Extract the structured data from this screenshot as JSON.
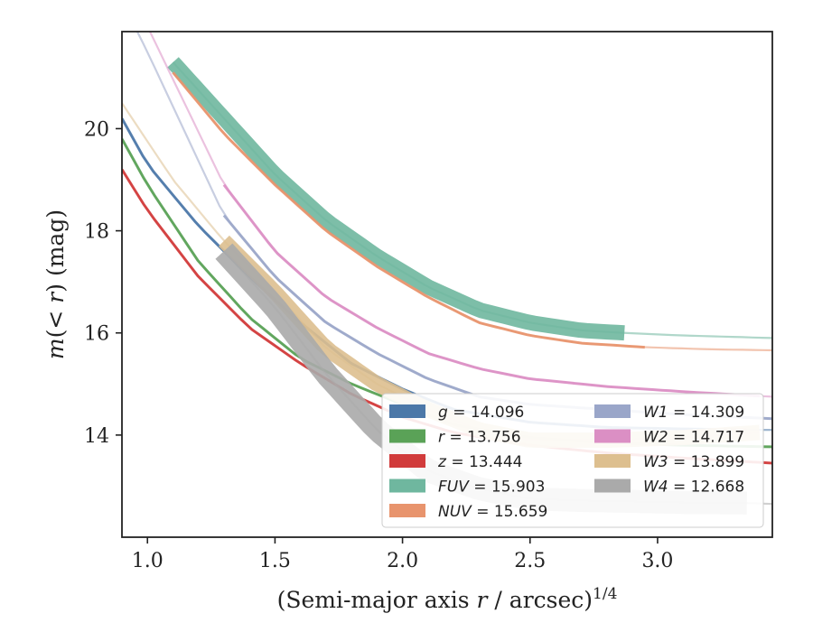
{
  "chart_data": {
    "type": "line",
    "xlabel": "(Semi-major axis r / arcsec)^1/4",
    "ylabel": "m(< r) (mag)",
    "xlim": [
      0.9,
      3.45
    ],
    "ylim": [
      21.9,
      12.0
    ],
    "y_inverted": true,
    "xticks": [
      "1.0",
      "1.5",
      "2.0",
      "2.5",
      "3.0"
    ],
    "yticks": [
      "14",
      "16",
      "18",
      "20"
    ],
    "grid": false,
    "legend_position": "lower-right",
    "legend": [
      {
        "band": "g",
        "value": "14.096",
        "color": "#4c78a8"
      },
      {
        "band": "r",
        "value": "13.756",
        "color": "#5aa257"
      },
      {
        "band": "z",
        "value": "13.444",
        "color": "#d13b3b"
      },
      {
        "band": "FUV",
        "value": "15.903",
        "color": "#6fb79f"
      },
      {
        "band": "NUV",
        "value": "15.659",
        "color": "#e8946d"
      },
      {
        "band": "W1",
        "value": "14.309",
        "color": "#9aa6c9"
      },
      {
        "band": "W2",
        "value": "14.717",
        "color": "#db8fc4"
      },
      {
        "band": "W3",
        "value": "13.899",
        "color": "#ddbf8f"
      },
      {
        "band": "W4",
        "value": "12.668",
        "color": "#aaaaaa"
      }
    ],
    "series": [
      {
        "name": "g",
        "color": "#4c78a8",
        "x": [
          0.9,
          1.0,
          1.2,
          1.4,
          1.6,
          1.8,
          2.0,
          2.2,
          2.5,
          2.8,
          3.1,
          3.45
        ],
        "y": [
          20.2,
          19.3,
          18.1,
          17.1,
          16.2,
          15.4,
          14.9,
          14.5,
          14.25,
          14.15,
          14.12,
          14.1
        ],
        "strong_range": [
          0.9,
          3.35
        ]
      },
      {
        "name": "r",
        "color": "#5aa257",
        "x": [
          0.9,
          1.0,
          1.2,
          1.4,
          1.6,
          1.8,
          2.0,
          2.2,
          2.5,
          2.8,
          3.1,
          3.45
        ],
        "y": [
          19.8,
          18.9,
          17.4,
          16.3,
          15.5,
          15.0,
          14.6,
          14.2,
          13.95,
          13.85,
          13.8,
          13.77
        ],
        "strong_range": [
          0.9,
          3.45
        ]
      },
      {
        "name": "z",
        "color": "#d13b3b",
        "x": [
          0.9,
          1.0,
          1.2,
          1.4,
          1.6,
          1.8,
          2.0,
          2.2,
          2.5,
          2.8,
          3.1,
          3.45
        ],
        "y": [
          19.2,
          18.4,
          17.1,
          16.1,
          15.4,
          14.8,
          14.35,
          14.05,
          13.8,
          13.65,
          13.55,
          13.45
        ],
        "strong_range": [
          0.9,
          3.45
        ]
      },
      {
        "name": "FUV",
        "color": "#6fb79f",
        "x": [
          1.1,
          1.3,
          1.5,
          1.7,
          1.9,
          2.1,
          2.3,
          2.5,
          2.7,
          2.87,
          3.1,
          3.45
        ],
        "y": [
          21.3,
          20.2,
          19.1,
          18.2,
          17.5,
          16.9,
          16.45,
          16.2,
          16.05,
          16.0,
          15.95,
          15.9
        ],
        "strong_range": [
          1.1,
          2.87
        ],
        "band_width": 0.3
      },
      {
        "name": "NUV",
        "color": "#e8946d",
        "x": [
          1.1,
          1.3,
          1.5,
          1.7,
          1.9,
          2.1,
          2.3,
          2.5,
          2.7,
          2.95,
          3.2,
          3.45
        ],
        "y": [
          21.1,
          19.9,
          18.9,
          18.0,
          17.3,
          16.7,
          16.2,
          15.95,
          15.8,
          15.72,
          15.68,
          15.66
        ],
        "strong_range": [
          1.1,
          2.95
        ]
      },
      {
        "name": "W1",
        "color": "#9aa6c9",
        "x": [
          0.9,
          1.0,
          1.3,
          1.5,
          1.7,
          1.9,
          2.1,
          2.3,
          2.5,
          2.8,
          3.1,
          3.45
        ],
        "y": [
          22.5,
          21.5,
          18.3,
          17.1,
          16.2,
          15.6,
          15.1,
          14.75,
          14.6,
          14.5,
          14.4,
          14.32
        ],
        "strong_range": [
          1.3,
          3.45
        ]
      },
      {
        "name": "W2",
        "color": "#db8fc4",
        "x": [
          1.0,
          1.3,
          1.5,
          1.7,
          1.9,
          2.1,
          2.3,
          2.5,
          2.8,
          3.1,
          3.45
        ],
        "y": [
          22.0,
          18.9,
          17.6,
          16.7,
          16.1,
          15.6,
          15.3,
          15.1,
          14.95,
          14.85,
          14.75
        ],
        "strong_range": [
          1.3,
          3.4
        ]
      },
      {
        "name": "W3",
        "color": "#ddbf8f",
        "x": [
          0.9,
          1.1,
          1.3,
          1.5,
          1.7,
          1.9,
          2.1,
          2.3,
          2.5,
          2.8,
          3.1,
          3.4
        ],
        "y": [
          20.5,
          19.0,
          17.8,
          16.8,
          15.7,
          15.0,
          14.5,
          14.1,
          13.9,
          13.9,
          13.95,
          14.05
        ],
        "strong_range": [
          1.3,
          3.4
        ],
        "band_width": 0.3
      },
      {
        "name": "W4",
        "color": "#aaaaaa",
        "x": [
          1.3,
          1.5,
          1.7,
          1.9,
          2.1,
          2.3,
          2.5,
          2.7,
          2.9,
          3.1,
          3.35,
          3.45
        ],
        "y": [
          17.6,
          16.5,
          15.2,
          14.1,
          13.3,
          12.95,
          12.75,
          12.72,
          12.7,
          12.68,
          12.67,
          12.65
        ],
        "strong_range": [
          1.3,
          3.35
        ],
        "band_width": 0.45
      }
    ]
  }
}
